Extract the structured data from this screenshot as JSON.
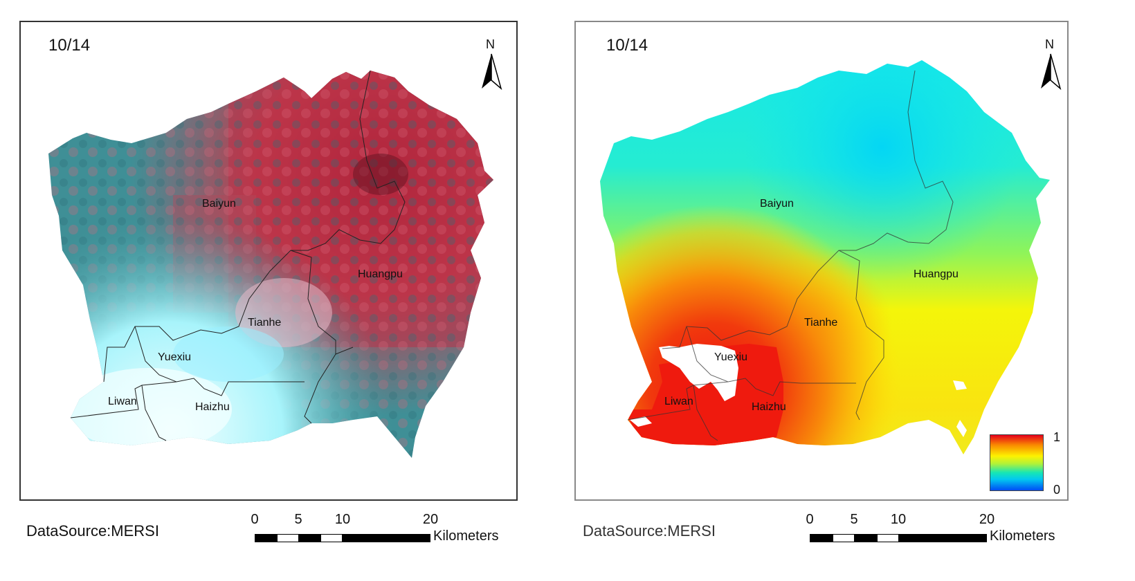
{
  "panels": [
    {
      "date": "10/14",
      "north": "N",
      "districts": [
        "Baiyun",
        "Huangpu",
        "Tianhe",
        "Yuexiu",
        "Liwan",
        "Haizhu"
      ],
      "source": "DataSource:MERSI",
      "scale": {
        "ticks": [
          "0",
          "5",
          "10",
          "20"
        ],
        "unit": "Kilometers"
      }
    },
    {
      "date": "10/14",
      "north": "N",
      "districts": [
        "Baiyun",
        "Huangpu",
        "Tianhe",
        "Yuexiu",
        "Liwan",
        "Haizhu"
      ],
      "source": "DataSource:MERSI",
      "scale": {
        "ticks": [
          "0",
          "5",
          "10",
          "20"
        ],
        "unit": "Kilometers"
      },
      "legend": {
        "max": "1",
        "min": "0",
        "colors": [
          "#e5001b",
          "#fdf200",
          "#16e6b4",
          "#004cf5"
        ]
      }
    }
  ],
  "colors": {
    "vegetation_red": "#c0303f",
    "water_teal": "#3f8f96",
    "urban_white": "#eafcff",
    "frame": "#333333"
  }
}
